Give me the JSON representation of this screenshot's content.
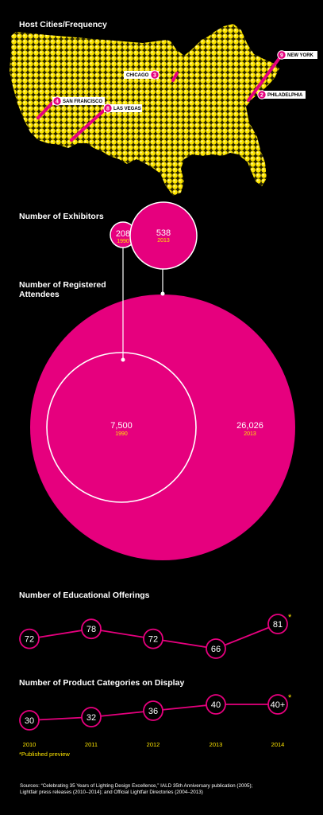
{
  "colors": {
    "magenta": "#e6007e",
    "yellow": "#ffe600",
    "background": "#000000",
    "white": "#ffffff"
  },
  "host_cities": {
    "title": "Host Cities/Frequency",
    "cities": [
      {
        "name": "NEW YORK",
        "count": 9
      },
      {
        "name": "CHICAGO",
        "count": 3
      },
      {
        "name": "PHILADELPHIA",
        "count": 2
      },
      {
        "name": "SAN FRANCISCO",
        "count": 4
      },
      {
        "name": "LAS VEGAS",
        "count": 8
      }
    ]
  },
  "exhibitors": {
    "title": "Number of Exhibitors",
    "items": [
      {
        "value": "208",
        "year": "1990"
      },
      {
        "value": "538",
        "year": "2013"
      }
    ]
  },
  "attendees": {
    "title_line1": "Number of Registered",
    "title_line2": "Attendees",
    "items": [
      {
        "value": "7,500",
        "year": "1990"
      },
      {
        "value": "26,026",
        "year": "2013"
      }
    ]
  },
  "education": {
    "title": "Number of Educational Offerings",
    "values": [
      "72",
      "78",
      "72",
      "66",
      "81"
    ],
    "starred": [
      false,
      false,
      false,
      false,
      true
    ]
  },
  "products": {
    "title": "Number of Product Categories on Display",
    "values": [
      "30",
      "32",
      "36",
      "40",
      "40+"
    ],
    "starred": [
      false,
      false,
      false,
      false,
      true
    ]
  },
  "years": [
    "2010",
    "2011",
    "2012",
    "2013",
    "2014"
  ],
  "footnote": "*Published preview",
  "star_symbol": "*",
  "sources_line1": "Sources: “Celebrating 35 Years of Lighting Design Excellence,” IALD 35th Anniversary publication (2005);",
  "sources_line2": "Lightfair press releases (2010–2014); and Official Lightfair Directories (2004–2013)",
  "chart_data": [
    {
      "type": "bubble",
      "title": "Host Cities/Frequency",
      "categories": [
        "New York",
        "Chicago",
        "Philadelphia",
        "San Francisco",
        "Las Vegas"
      ],
      "values": [
        9,
        3,
        2,
        4,
        8
      ]
    },
    {
      "type": "bubble",
      "title": "Number of Exhibitors",
      "categories": [
        "1990",
        "2013"
      ],
      "values": [
        208,
        538
      ]
    },
    {
      "type": "bubble",
      "title": "Number of Registered Attendees",
      "categories": [
        "1990",
        "2013"
      ],
      "values": [
        7500,
        26026
      ]
    },
    {
      "type": "line",
      "title": "Number of Educational Offerings",
      "x": [
        2010,
        2011,
        2012,
        2013,
        2014
      ],
      "values": [
        72,
        78,
        72,
        66,
        81
      ]
    },
    {
      "type": "line",
      "title": "Number of Product Categories on Display",
      "x": [
        2010,
        2011,
        2012,
        2013,
        2014
      ],
      "values": [
        30,
        32,
        36,
        40,
        40
      ]
    }
  ]
}
